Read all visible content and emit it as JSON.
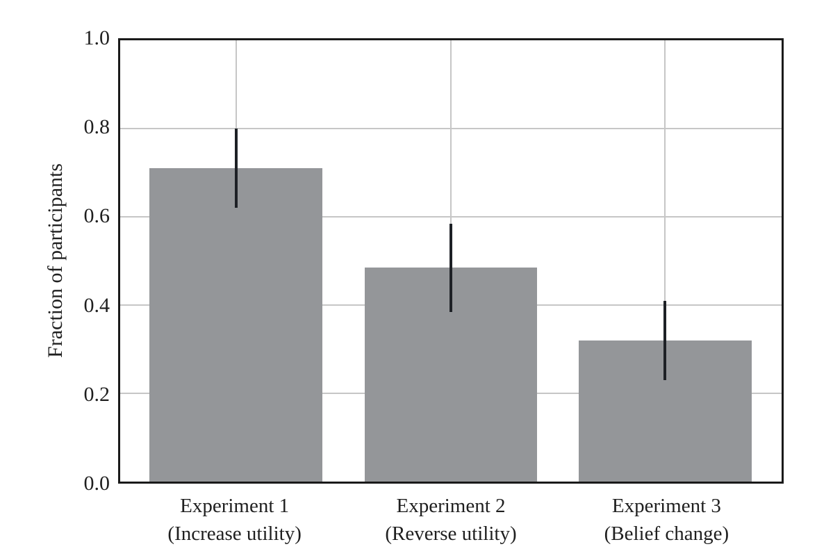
{
  "chart_data": {
    "type": "bar",
    "title": "",
    "ylabel": "Fraction of participants",
    "xlabel": "",
    "categories": [
      {
        "label": "Experiment 1",
        "sublabel": "(Increase utility)"
      },
      {
        "label": "Experiment 2",
        "sublabel": "(Reverse utility)"
      },
      {
        "label": "Experiment 3",
        "sublabel": "(Belief change)"
      }
    ],
    "values": [
      0.71,
      0.485,
      0.32
    ],
    "error_low": [
      0.62,
      0.385,
      0.23
    ],
    "error_high": [
      0.8,
      0.585,
      0.41
    ],
    "ylim": [
      0.0,
      1.0
    ],
    "yticks": [
      0.0,
      0.2,
      0.4,
      0.6,
      0.8,
      1.0
    ],
    "ytick_labels": [
      "0.0",
      "0.2",
      "0.4",
      "0.6",
      "0.8",
      "1.0"
    ],
    "grid": true,
    "legend": "none",
    "colors": {
      "bar": "#949699",
      "error_bar": "#1e2126",
      "gridline": "#c6c6c6",
      "axis": "#1a1a1a",
      "text": "#1f1f1f",
      "background": "#ffffff"
    },
    "layout_hints": {
      "bar_centers_pct": [
        17.5,
        50.0,
        82.4
      ],
      "bar_width_pct": 26.1
    }
  }
}
